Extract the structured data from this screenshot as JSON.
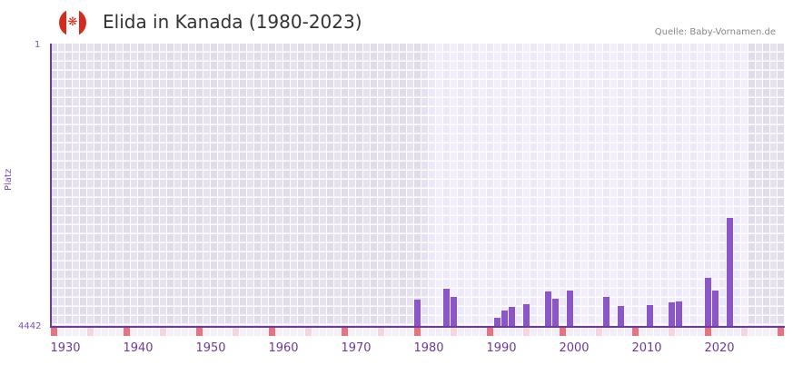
{
  "header": {
    "title": "Elida in Kanada (1980-2023)",
    "flag_icon": "canada-flag-icon",
    "source": "Quelle: Baby-Vornamen.de"
  },
  "colors": {
    "bar": "#8c56c8",
    "axis": "#6a3aa0",
    "marker_strong": "#e8737e",
    "marker_light": "#f5d5de",
    "bg_active": "#efeaf8",
    "bg_inactive": "#e3dfee"
  },
  "chart_data": {
    "type": "bar",
    "title": "Elida in Kanada (1980-2023)",
    "xlabel": "",
    "ylabel": "Platz",
    "y_ticks": [
      "1",
      "4442"
    ],
    "ylim": [
      4442,
      1
    ],
    "y_inverted": true,
    "x_ticks": [
      "1930",
      "1940",
      "1950",
      "1960",
      "1970",
      "1980",
      "1990",
      "2000",
      "2010",
      "2020"
    ],
    "xlim": [
      1928,
      2028
    ],
    "active_range": [
      1980,
      2023
    ],
    "grid": true,
    "categories": [
      1978,
      1982,
      1983,
      1989,
      1990,
      1991,
      1993,
      1996,
      1997,
      1999,
      2004,
      2006,
      2010,
      2013,
      2014,
      2018,
      2019,
      2021
    ],
    "bar_heights_rel": [
      0.096,
      0.135,
      0.106,
      0.032,
      0.058,
      0.071,
      0.08,
      0.125,
      0.099,
      0.128,
      0.106,
      0.074,
      0.077,
      0.087,
      0.09,
      0.173,
      0.128,
      0.384
    ],
    "values_rank_est": [
      4017,
      3843,
      3973,
      4300,
      4185,
      4128,
      4088,
      3887,
      4002,
      3874,
      3973,
      4114,
      4101,
      4057,
      4043,
      3674,
      3874,
      2737
    ]
  },
  "axes": {
    "y_top": "1",
    "y_bottom": "4442",
    "y_label": "Platz",
    "x_ticks": [
      "1930",
      "1940",
      "1950",
      "1960",
      "1970",
      "1980",
      "1990",
      "2000",
      "2010",
      "2020"
    ]
  }
}
